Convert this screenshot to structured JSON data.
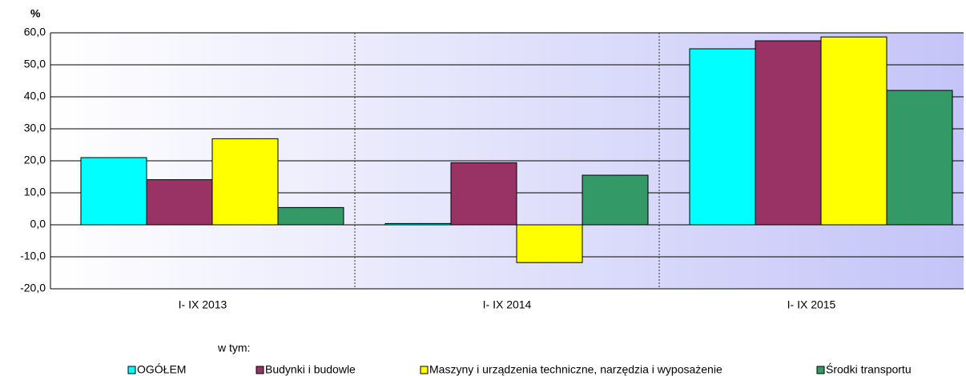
{
  "chart_data": {
    "type": "bar",
    "unit_label": "%",
    "categories": [
      "I- IX 2013",
      "I- IX 2014",
      "I- IX 2015"
    ],
    "series": [
      {
        "name": "OGÓŁEM",
        "color": "#00ffff",
        "values": [
          21.0,
          0.4,
          55.0
        ]
      },
      {
        "name": "Budynki i budowle",
        "color": "#993366",
        "values": [
          14.1,
          19.4,
          57.5
        ]
      },
      {
        "name": "Maszyny i urządzenia techniczne, narzędzia i wyposażenie",
        "color": "#ffff00",
        "values": [
          26.9,
          -11.8,
          58.7
        ]
      },
      {
        "name": "Środki transportu",
        "color": "#339966",
        "values": [
          5.4,
          15.5,
          42.0
        ]
      }
    ],
    "legend_note": "w tym:",
    "ylim": [
      -20,
      60
    ],
    "yticks": [
      {
        "value": -20,
        "label": "-20,0"
      },
      {
        "value": -10,
        "label": "-10,0"
      },
      {
        "value": 0,
        "label": "0,0"
      },
      {
        "value": 10,
        "label": "10,0"
      },
      {
        "value": 20,
        "label": "20,0"
      },
      {
        "value": 30,
        "label": "30,0"
      },
      {
        "value": 40,
        "label": "40,0"
      },
      {
        "value": 50,
        "label": "50,0"
      },
      {
        "value": 60,
        "label": "60,0"
      }
    ],
    "grid": true,
    "legend": "bottom"
  }
}
